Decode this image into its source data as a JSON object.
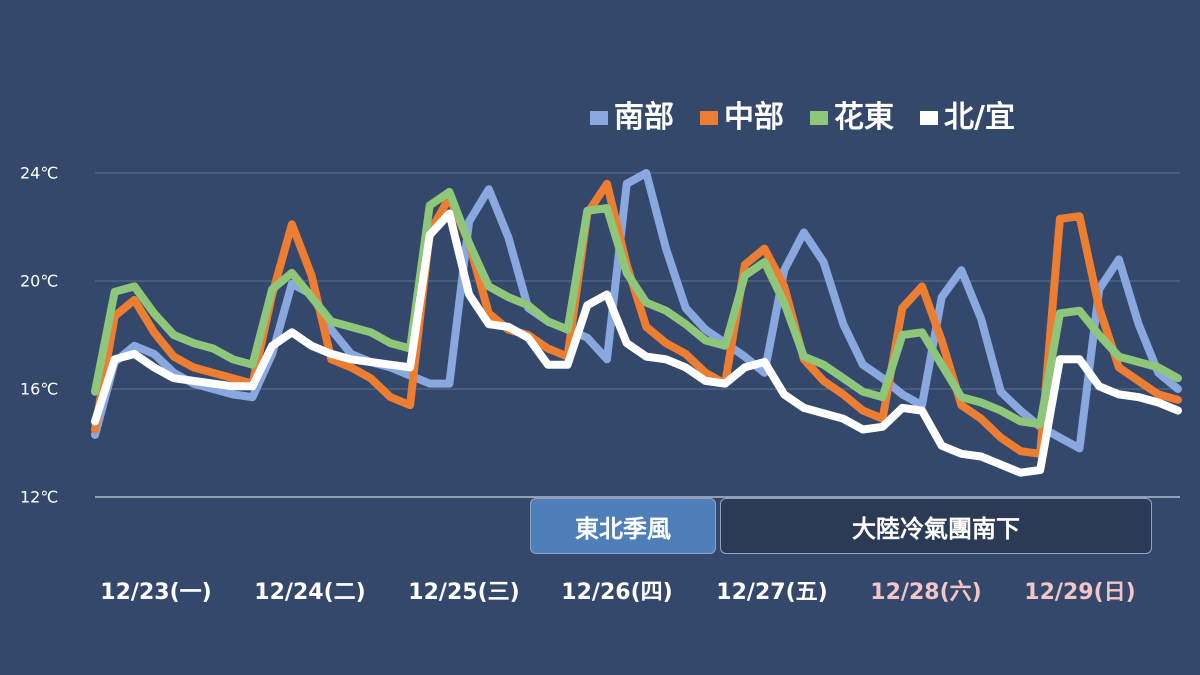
{
  "chart_data": {
    "type": "line",
    "title": "",
    "xlabel": "",
    "ylabel": "",
    "ylim": [
      12,
      24
    ],
    "yticks": [
      "24℃",
      "20℃",
      "16℃",
      "12℃"
    ],
    "ytick_values": [
      24,
      20,
      16,
      12
    ],
    "grid": true,
    "legend_position": "top-right",
    "x_categories": [
      "12/23(一)",
      "12/24(二)",
      "12/25(三)",
      "12/26(四)",
      "12/27(五)",
      "12/28(六)",
      "12/29(日)"
    ],
    "x_category_colors": [
      "#ffffff",
      "#ffffff",
      "#ffffff",
      "#ffffff",
      "#ffffff",
      "#f2c6c8",
      "#f2c6c8"
    ],
    "x_hours": [
      0,
      3,
      6,
      9,
      12,
      15,
      18,
      21,
      24,
      27,
      30,
      33,
      36,
      39,
      42,
      45,
      48,
      51,
      54,
      57,
      60,
      63,
      66,
      69,
      72,
      75,
      78,
      81,
      84,
      87,
      90,
      93,
      96,
      99,
      102,
      105,
      108,
      111,
      114,
      117,
      120,
      123,
      126,
      129,
      132,
      135,
      138,
      141,
      144,
      147,
      150,
      153,
      156,
      159,
      162,
      165
    ],
    "series": [
      {
        "name": "南部",
        "color": "#89a8df",
        "values": [
          14.3,
          17.0,
          17.6,
          17.3,
          16.6,
          16.2,
          16.0,
          15.8,
          15.7,
          17.3,
          19.9,
          19.5,
          18.2,
          17.3,
          17.0,
          16.8,
          16.5,
          16.2,
          16.2,
          22.2,
          23.4,
          21.6,
          19.0,
          18.5,
          18.2,
          17.9,
          17.1,
          23.6,
          24.0,
          21.2,
          19.0,
          18.2,
          17.7,
          17.2,
          16.6,
          20.4,
          21.8,
          20.7,
          18.4,
          16.9,
          16.4,
          15.8,
          15.4,
          19.4,
          20.4,
          18.6,
          15.9,
          15.2,
          14.6,
          14.2,
          13.8,
          19.7,
          20.8,
          18.4,
          16.6,
          16.0
        ]
      },
      {
        "name": "中部",
        "color": "#ed7d31",
        "values": [
          14.5,
          18.7,
          19.3,
          18.1,
          17.2,
          16.8,
          16.6,
          16.4,
          16.2,
          19.5,
          22.1,
          20.2,
          17.1,
          16.8,
          16.4,
          15.7,
          15.4,
          21.8,
          23.1,
          21.4,
          18.8,
          18.2,
          18.0,
          17.5,
          17.2,
          22.5,
          23.6,
          20.6,
          18.3,
          17.7,
          17.3,
          16.6,
          16.2,
          20.6,
          21.2,
          19.8,
          17.1,
          16.3,
          15.8,
          15.2,
          14.9,
          19.0,
          19.8,
          17.8,
          15.4,
          14.9,
          14.2,
          13.7,
          13.6,
          22.3,
          22.4,
          19.0,
          16.8,
          16.3,
          15.8,
          15.6
        ]
      },
      {
        "name": "花東",
        "color": "#8ec77a",
        "values": [
          15.9,
          19.6,
          19.8,
          18.8,
          18.0,
          17.7,
          17.5,
          17.1,
          16.9,
          19.7,
          20.3,
          19.4,
          18.5,
          18.3,
          18.1,
          17.7,
          17.5,
          22.8,
          23.3,
          21.4,
          19.8,
          19.4,
          19.1,
          18.5,
          18.2,
          22.6,
          22.7,
          20.3,
          19.2,
          18.9,
          18.4,
          17.8,
          17.6,
          20.2,
          20.7,
          19.2,
          17.2,
          16.9,
          16.4,
          15.9,
          15.7,
          18.0,
          18.1,
          16.9,
          15.7,
          15.5,
          15.2,
          14.8,
          14.7,
          18.8,
          18.9,
          18.0,
          17.2,
          17.0,
          16.8,
          16.4
        ]
      },
      {
        "name": "北/宜",
        "color": "#ffffff",
        "values": [
          14.8,
          17.1,
          17.3,
          16.8,
          16.4,
          16.3,
          16.2,
          16.1,
          16.1,
          17.6,
          18.1,
          17.6,
          17.3,
          17.1,
          17.0,
          16.9,
          16.8,
          21.7,
          22.5,
          19.5,
          18.4,
          18.3,
          17.9,
          16.9,
          16.9,
          19.1,
          19.5,
          17.7,
          17.2,
          17.1,
          16.8,
          16.3,
          16.2,
          16.8,
          17.0,
          15.8,
          15.3,
          15.1,
          14.9,
          14.5,
          14.6,
          15.3,
          15.2,
          13.9,
          13.6,
          13.5,
          13.2,
          12.9,
          13.0,
          17.1,
          17.1,
          16.1,
          15.8,
          15.7,
          15.5,
          15.2
        ]
      }
    ]
  },
  "annotations": [
    {
      "label": "東北季風",
      "background": "#4f7fb8"
    },
    {
      "label": "大陸冷氣團南下",
      "background": "#2c3b55"
    }
  ]
}
